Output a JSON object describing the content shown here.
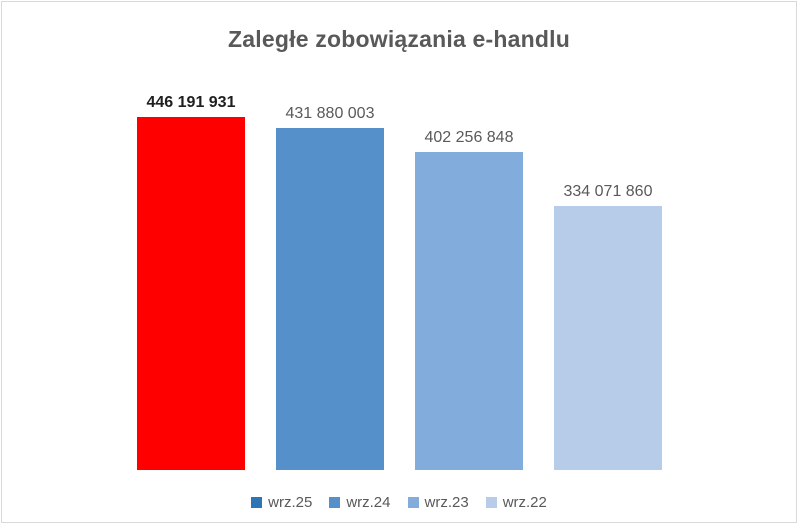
{
  "chart_data": {
    "type": "bar",
    "title": "Zaległe zobowiązania e-handlu",
    "categories": [
      "wrz.25",
      "wrz.24",
      "wrz.23",
      "wrz.22"
    ],
    "values": [
      446191931,
      431880003,
      402256848,
      334071860
    ],
    "value_labels": [
      "446 191 931",
      "431 880 003",
      "402 256 848",
      "334 071 860"
    ],
    "value_label_bold": [
      true,
      false,
      false,
      false
    ],
    "bar_colors": [
      "#ff0000",
      "#5590cb",
      "#82acdc",
      "#b7cce8"
    ],
    "legend_entries": [
      {
        "label": "wrz.25",
        "color": "#2e75b6"
      },
      {
        "label": "wrz.24",
        "color": "#5590cb"
      },
      {
        "label": "wrz.23",
        "color": "#82acdc"
      },
      {
        "label": "wrz.22",
        "color": "#b7cce8"
      }
    ],
    "legend_position": "bottom",
    "grid": false,
    "axes_visible": false,
    "ylim": [
      0,
      446191931
    ],
    "xlabel": "",
    "ylabel": "",
    "colors": {
      "title_text": "#595959",
      "label_text": "#595959",
      "highlight_label_text": "#1f1f1f",
      "frame_border": "#d9d9d9",
      "background": "#ffffff"
    }
  }
}
